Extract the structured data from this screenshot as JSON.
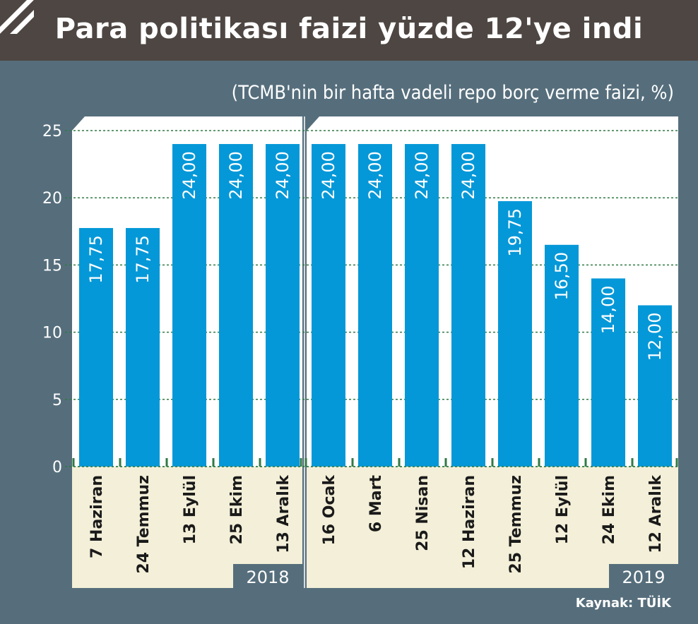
{
  "title": "Para politikası faizi yüzde 12'ye indi",
  "subtitle": "(TCMB'nin bir hafta vadeli repo borç verme faizi, %)",
  "source": "Kaynak: TÜİK",
  "colors": {
    "bar": "#0598d8",
    "background": "#566e7c",
    "title_band": "#4e4642",
    "label_area": "#f3efd8",
    "year_box": "#566e7c",
    "grid": "#2f7a44"
  },
  "chart_data": {
    "type": "bar",
    "ylim": [
      0,
      25
    ],
    "yticks": [
      "0",
      "5",
      "10",
      "15",
      "20",
      "25"
    ],
    "grid": true,
    "groups": [
      {
        "year": "2018",
        "categories": [
          "7 Haziran",
          "24 Temmuz",
          "13 Eylül",
          "25 Ekim",
          "13 Aralık"
        ],
        "values": [
          17.75,
          17.75,
          24.0,
          24.0,
          24.0
        ],
        "labels": [
          "17,75",
          "17,75",
          "24,00",
          "24,00",
          "24,00"
        ]
      },
      {
        "year": "2019",
        "categories": [
          "16 Ocak",
          "6 Mart",
          "25 Nisan",
          "12 Haziran",
          "25 Temmuz",
          "12 Eylül",
          "24 Ekim",
          "12 Aralık"
        ],
        "values": [
          24.0,
          24.0,
          24.0,
          24.0,
          19.75,
          16.5,
          14.0,
          12.0
        ],
        "labels": [
          "24,00",
          "24,00",
          "24,00",
          "24,00",
          "19,75",
          "16,50",
          "14,00",
          "12,00"
        ]
      }
    ]
  }
}
